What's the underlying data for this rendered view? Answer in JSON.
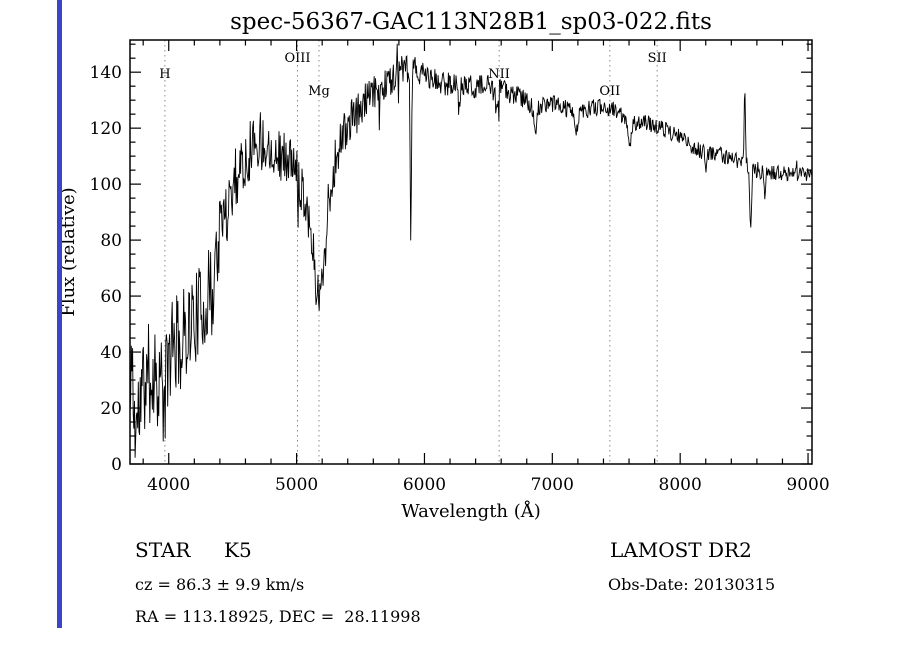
{
  "colors": {
    "edge_bar": "#3a45c8",
    "trace": "#000000",
    "marker_line": "#8a8a8a"
  },
  "chart_data": {
    "type": "line",
    "title": "spec-56367-GAC113N28B1_sp03-022.fits",
    "xlabel": "Wavelength (Å)",
    "ylabel": "Flux (relative)",
    "xlim": [
      3697,
      9031
    ],
    "ylim": [
      0,
      151.5
    ],
    "x_ticks": [
      4000,
      5000,
      6000,
      7000,
      8000,
      9000
    ],
    "y_ticks": [
      0,
      20,
      40,
      60,
      80,
      100,
      120,
      140
    ],
    "x_minor_step": 200,
    "y_minor_step": 5,
    "grid": "off",
    "legend": "none",
    "spectral_lines": [
      {
        "label": "H",
        "wavelength": 3970,
        "level": "mid"
      },
      {
        "label": "OIII",
        "wavelength": 5007,
        "level": "high"
      },
      {
        "label": "Mg",
        "wavelength": 5175,
        "level": "low"
      },
      {
        "label": "NII",
        "wavelength": 6584,
        "level": "mid"
      },
      {
        "label": "OII",
        "wavelength": 7450,
        "level": "low"
      },
      {
        "label": "SII",
        "wavelength": 7820,
        "level": "high"
      }
    ],
    "continuum_anchors": [
      [
        3697,
        18
      ],
      [
        3750,
        14
      ],
      [
        3800,
        28
      ],
      [
        3850,
        32
      ],
      [
        3900,
        33
      ],
      [
        3950,
        29
      ],
      [
        4000,
        38
      ],
      [
        4050,
        42
      ],
      [
        4100,
        46
      ],
      [
        4150,
        50
      ],
      [
        4200,
        52
      ],
      [
        4250,
        55
      ],
      [
        4300,
        58
      ],
      [
        4350,
        70
      ],
      [
        4400,
        82
      ],
      [
        4450,
        92
      ],
      [
        4500,
        100
      ],
      [
        4550,
        106
      ],
      [
        4600,
        110
      ],
      [
        4650,
        114
      ],
      [
        4700,
        116
      ],
      [
        4750,
        115
      ],
      [
        4800,
        113
      ],
      [
        4850,
        111
      ],
      [
        4900,
        110
      ],
      [
        4950,
        108
      ],
      [
        5000,
        104
      ],
      [
        5050,
        98
      ],
      [
        5100,
        88
      ],
      [
        5150,
        66
      ],
      [
        5180,
        58
      ],
      [
        5220,
        76
      ],
      [
        5260,
        95
      ],
      [
        5300,
        108
      ],
      [
        5350,
        116
      ],
      [
        5400,
        121
      ],
      [
        5450,
        124
      ],
      [
        5500,
        127
      ],
      [
        5550,
        130
      ],
      [
        5600,
        132
      ],
      [
        5650,
        134
      ],
      [
        5700,
        136
      ],
      [
        5750,
        138
      ],
      [
        5800,
        140
      ],
      [
        5850,
        141
      ],
      [
        5900,
        141
      ],
      [
        5950,
        140
      ],
      [
        6000,
        139
      ],
      [
        6100,
        136
      ],
      [
        6200,
        136
      ],
      [
        6300,
        135
      ],
      [
        6400,
        135
      ],
      [
        6500,
        135
      ],
      [
        6560,
        132
      ],
      [
        6600,
        134
      ],
      [
        6700,
        132
      ],
      [
        6800,
        130
      ],
      [
        6870,
        126
      ],
      [
        6950,
        129
      ],
      [
        7000,
        129
      ],
      [
        7100,
        127
      ],
      [
        7200,
        125
      ],
      [
        7300,
        127
      ],
      [
        7400,
        128
      ],
      [
        7500,
        126
      ],
      [
        7600,
        122
      ],
      [
        7700,
        122
      ],
      [
        7800,
        121
      ],
      [
        7900,
        119
      ],
      [
        8000,
        117
      ],
      [
        8100,
        113
      ],
      [
        8200,
        111
      ],
      [
        8300,
        111
      ],
      [
        8400,
        109
      ],
      [
        8500,
        108
      ],
      [
        8600,
        105
      ],
      [
        8700,
        104
      ],
      [
        8800,
        104
      ],
      [
        8900,
        103
      ],
      [
        9031,
        104
      ]
    ],
    "noise_anchors": [
      [
        3697,
        20
      ],
      [
        3900,
        19
      ],
      [
        4100,
        17
      ],
      [
        4300,
        16
      ],
      [
        4600,
        12
      ],
      [
        4900,
        9
      ],
      [
        5200,
        9
      ],
      [
        5500,
        7
      ],
      [
        5800,
        5.5
      ],
      [
        6100,
        4.5
      ],
      [
        6500,
        4
      ],
      [
        7000,
        3.2
      ],
      [
        7500,
        3
      ],
      [
        8000,
        2.8
      ],
      [
        8600,
        3
      ],
      [
        9031,
        2.6
      ]
    ],
    "features": [
      [
        3713,
        34,
        4
      ],
      [
        3967,
        -12,
        10
      ],
      [
        4102,
        -9,
        7
      ],
      [
        4340,
        -10,
        8
      ],
      [
        5893,
        -66,
        5
      ],
      [
        6270,
        -10,
        5
      ],
      [
        6563,
        -8,
        6
      ],
      [
        6867,
        -10,
        9
      ],
      [
        7190,
        -7,
        8
      ],
      [
        7605,
        -9,
        9
      ],
      [
        8205,
        -6,
        6
      ],
      [
        8505,
        24,
        5
      ],
      [
        8552,
        -22,
        7
      ],
      [
        8662,
        -8,
        6
      ]
    ],
    "noise_seed": 11,
    "sample_step": 5
  },
  "footer": {
    "class_label": "STAR",
    "subclass": "K5",
    "survey": "LAMOST DR2",
    "cz": "cz = 86.3 ± 9.9 km/s",
    "obs_date": "Obs-Date: 20130315",
    "coords": "RA = 113.18925, DEC =  28.11998"
  }
}
